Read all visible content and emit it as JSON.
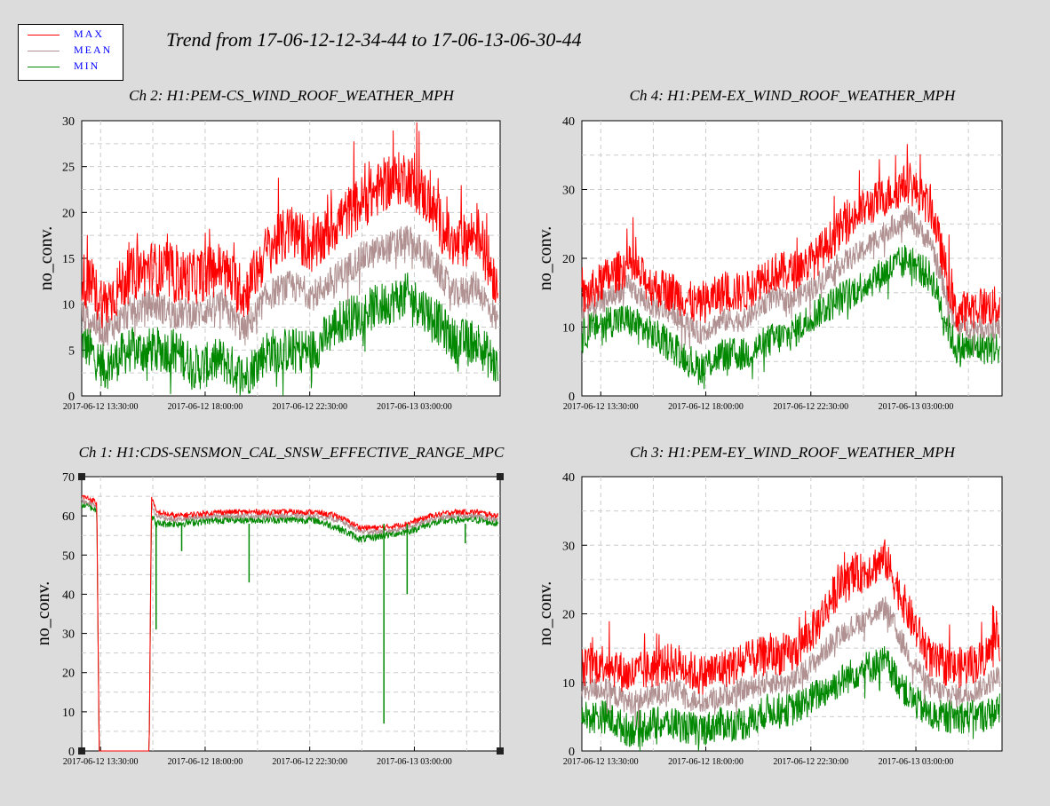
{
  "title": "Trend from 17-06-12-12-34-44 to 17-06-13-06-30-44",
  "legend": [
    {
      "label": "MAX",
      "color": "#ff0000"
    },
    {
      "label": "MEAN",
      "color": "#b09090"
    },
    {
      "label": "MIN",
      "color": "#008800"
    }
  ],
  "colors": {
    "max": "#ff0000",
    "mean": "#b09090",
    "min": "#008800",
    "legend_text": "#0000ff"
  },
  "chart_data": [
    {
      "type": "line",
      "title": "Ch 2: H1:PEM-CS_WIND_ROOF_WEATHER_MPH",
      "ylabel": "no_conv.",
      "xlabel": "",
      "ylim": [
        0,
        30
      ],
      "yticks": [
        0,
        5,
        10,
        15,
        20,
        25,
        30
      ],
      "xticks": [
        "2017-06-12 13:30:00",
        "2017-06-12 18:00:00",
        "2017-06-12 22:30:00",
        "2017-06-13 03:00:00"
      ],
      "grid": true,
      "x_hours": [
        0,
        1,
        2,
        3,
        4,
        5,
        6,
        7,
        8,
        9,
        10,
        11,
        12,
        13,
        14,
        15,
        16,
        17,
        17.9
      ],
      "series": [
        {
          "name": "MAX",
          "values": [
            13,
            10,
            13,
            14,
            13,
            13,
            14,
            11,
            16,
            18,
            16,
            19,
            21,
            23,
            24,
            21,
            16,
            18,
            12
          ]
        },
        {
          "name": "MEAN",
          "values": [
            9,
            7,
            9,
            10,
            9,
            9,
            10,
            7,
            11,
            12,
            11,
            13,
            15,
            16,
            17,
            15,
            11,
            12,
            8
          ]
        },
        {
          "name": "MIN",
          "values": [
            6,
            3,
            5,
            5,
            5,
            3,
            4,
            2,
            5,
            5,
            5,
            8,
            9,
            10,
            11,
            9,
            6,
            6,
            3
          ]
        }
      ]
    },
    {
      "type": "line",
      "title": "Ch 4: H1:PEM-EX_WIND_ROOF_WEATHER_MPH",
      "ylabel": "no_conv.",
      "xlabel": "",
      "ylim": [
        0,
        40
      ],
      "yticks": [
        0,
        10,
        20,
        30,
        40
      ],
      "xticks": [
        "2017-06-12 13:30:00",
        "2017-06-12 18:00:00",
        "2017-06-12 22:30:00",
        "2017-06-13 03:00:00"
      ],
      "grid": true,
      "x_hours": [
        0,
        1,
        2,
        3,
        4,
        5,
        6,
        7,
        8,
        9,
        10,
        11,
        12,
        13,
        14,
        15,
        16,
        17,
        17.9
      ],
      "series": [
        {
          "name": "MAX",
          "values": [
            14,
            17,
            19,
            16,
            15,
            13,
            15,
            15,
            18,
            18,
            20,
            24,
            27,
            29,
            31,
            27,
            12,
            13,
            13
          ]
        },
        {
          "name": "MEAN",
          "values": [
            12,
            14,
            16,
            13,
            12,
            9,
            11,
            11,
            14,
            14,
            16,
            19,
            21,
            24,
            26,
            22,
            10,
            10,
            10
          ]
        },
        {
          "name": "MIN",
          "values": [
            9,
            11,
            11,
            9,
            7,
            4,
            6,
            6,
            8,
            9,
            12,
            14,
            16,
            18,
            20,
            17,
            7,
            7,
            7
          ]
        }
      ]
    },
    {
      "type": "line",
      "title": "Ch 1: H1:CDS-SENSMON_CAL_SNSW_EFFECTIVE_RANGE_MPC",
      "ylabel": "no_conv.",
      "xlabel": "",
      "ylim": [
        0,
        70
      ],
      "yticks": [
        0,
        10,
        20,
        30,
        40,
        50,
        60,
        70
      ],
      "xticks": [
        "2017-06-12 13:30:00",
        "2017-06-12 18:00:00",
        "2017-06-12 22:30:00",
        "2017-06-13 03:00:00"
      ],
      "grid": true,
      "x_hours": [
        0,
        0.5,
        0.65,
        0.75,
        2.9,
        3.0,
        3.2,
        4,
        6,
        8,
        10,
        11,
        12,
        13,
        14,
        15,
        16,
        17,
        17.9
      ],
      "series": [
        {
          "name": "MAX",
          "values": [
            65,
            64,
            63,
            0,
            0,
            65,
            61,
            60,
            61,
            61,
            61,
            60,
            57,
            57,
            58,
            60,
            61,
            61,
            60
          ]
        },
        {
          "name": "MEAN",
          "values": [
            64,
            63,
            62,
            0,
            0,
            63,
            60,
            59,
            60,
            60,
            60,
            59,
            56,
            56,
            57,
            59,
            60,
            60,
            59
          ]
        },
        {
          "name": "MIN",
          "values": [
            63,
            62,
            61,
            0,
            0,
            60,
            58,
            58,
            59,
            59,
            59,
            57,
            54,
            55,
            56,
            58,
            59,
            59,
            58
          ]
        }
      ],
      "dips": [
        {
          "x_hours": 3.2,
          "value": 31
        },
        {
          "x_hours": 4.3,
          "value": 51
        },
        {
          "x_hours": 7.2,
          "value": 43
        },
        {
          "x_hours": 13.0,
          "value": 7
        },
        {
          "x_hours": 14.0,
          "value": 40
        },
        {
          "x_hours": 16.5,
          "value": 53
        }
      ]
    },
    {
      "type": "line",
      "title": "Ch 3: H1:PEM-EY_WIND_ROOF_WEATHER_MPH",
      "ylabel": "no_conv.",
      "xlabel": "",
      "ylim": [
        0,
        40
      ],
      "yticks": [
        0,
        10,
        20,
        30,
        40
      ],
      "xticks": [
        "2017-06-12 13:30:00",
        "2017-06-12 18:00:00",
        "2017-06-12 22:30:00",
        "2017-06-13 03:00:00"
      ],
      "grid": true,
      "x_hours": [
        0,
        1,
        2,
        3,
        4,
        5,
        6,
        7,
        8,
        9,
        10,
        11,
        12,
        13,
        14,
        15,
        16,
        17,
        17.9
      ],
      "series": [
        {
          "name": "MAX",
          "values": [
            12,
            13,
            11,
            12,
            13,
            11,
            12,
            13,
            14,
            14,
            18,
            24,
            26,
            28,
            20,
            13,
            12,
            13,
            16
          ]
        },
        {
          "name": "MEAN",
          "values": [
            9,
            9,
            7,
            8,
            9,
            7,
            8,
            9,
            10,
            10,
            13,
            17,
            19,
            21,
            14,
            9,
            8,
            9,
            11
          ]
        },
        {
          "name": "MIN",
          "values": [
            5,
            5,
            3,
            4,
            4,
            3,
            4,
            4,
            6,
            6,
            8,
            10,
            12,
            13,
            8,
            5,
            5,
            5,
            6
          ]
        }
      ]
    }
  ]
}
